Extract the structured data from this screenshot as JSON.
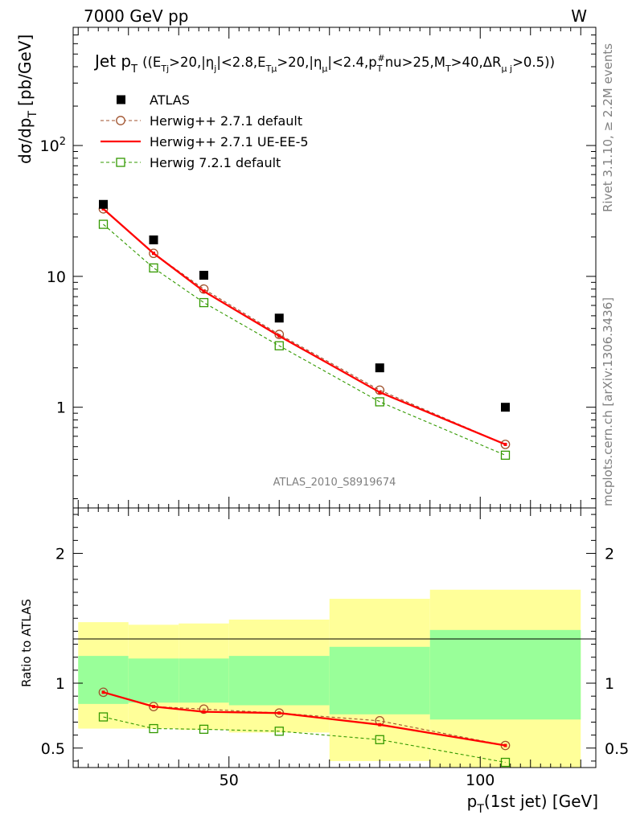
{
  "header": {
    "energy": "7000 GeV pp",
    "process": "W",
    "side_top": "Rivet 3.1.10, ≥ 2.2M events",
    "side_bottom": "mcplots.cern.ch [arXiv:1306.3436]"
  },
  "chart_data": [
    {
      "type": "scatter",
      "panel": "main",
      "title": "Jet p_T ((E_Tj>20,|η_j|<2.8,E_Tμ>20,|η_μ|<2.4,p_T^#nu>25,M_T>40,ΔR_μj>0.5))",
      "ylabel": "dσ/dp_T [pb/GeV]",
      "xlabel": "p_T(1st jet) [GeV]",
      "yscale": "log",
      "xlim": [
        19,
        123
      ],
      "ylim": [
        0.17,
        800
      ],
      "x_ticks": [
        50,
        100
      ],
      "y_ticks": [
        {
          "value": 1,
          "label": "1"
        },
        {
          "value": 10,
          "label": "10"
        },
        {
          "value": 100,
          "label": "10²"
        }
      ],
      "watermark": "ATLAS_2010_S8919674",
      "x": [
        25,
        35,
        45,
        60,
        80,
        105
      ],
      "series": [
        {
          "name": "ATLAS",
          "style": "data",
          "color": "#000000",
          "values": [
            35.5,
            19.0,
            10.2,
            4.8,
            2.0,
            1.0
          ]
        },
        {
          "name": "Herwig++ 2.7.1 default",
          "style": "circle-dashed",
          "color": "#a0522d",
          "values": [
            32.8,
            15.0,
            8.0,
            3.6,
            1.35,
            0.52
          ]
        },
        {
          "name": "Herwig++ 2.7.1 UE-EE-5",
          "style": "solid",
          "color": "#ff0000",
          "values": [
            32.8,
            15.0,
            7.7,
            3.5,
            1.3,
            0.52
          ]
        },
        {
          "name": "Herwig 7.2.1 default",
          "style": "square-dashed",
          "color": "#339900",
          "values": [
            25.0,
            11.6,
            6.3,
            2.95,
            1.1,
            0.43
          ]
        }
      ]
    },
    {
      "type": "line",
      "panel": "ratio",
      "ylabel": "Ratio to ATLAS",
      "xlabel": "p_T(1st jet) [GeV]",
      "xlim": [
        19,
        123
      ],
      "ylim": [
        0.35,
        2.35
      ],
      "x_ticks": [
        50,
        100
      ],
      "y_ticks": [
        {
          "value": 0.5,
          "label": "0.5"
        },
        {
          "value": 1,
          "label": "1"
        },
        {
          "value": 2,
          "label": "2"
        }
      ],
      "bands": {
        "bins": [
          [
            20,
            30
          ],
          [
            30,
            40
          ],
          [
            40,
            50
          ],
          [
            50,
            70
          ],
          [
            70,
            90
          ],
          [
            90,
            120
          ]
        ],
        "green": [
          [
            0.84,
            1.21
          ],
          [
            0.85,
            1.19
          ],
          [
            0.85,
            1.19
          ],
          [
            0.83,
            1.21
          ],
          [
            0.76,
            1.28
          ],
          [
            0.72,
            1.41
          ]
        ],
        "yellow": [
          [
            0.65,
            1.47
          ],
          [
            0.65,
            1.45
          ],
          [
            0.64,
            1.46
          ],
          [
            0.62,
            1.49
          ],
          [
            0.4,
            1.65
          ],
          [
            0.35,
            1.72
          ]
        ],
        "green_color": "#99ff99",
        "yellow_color": "#ffff99"
      },
      "x": [
        25,
        35,
        45,
        60,
        80,
        105
      ],
      "series": [
        {
          "name": "Herwig++ 2.7.1 default",
          "style": "circle-dashed",
          "color": "#a0522d",
          "values": [
            0.93,
            0.82,
            0.8,
            0.77,
            0.71,
            0.52
          ]
        },
        {
          "name": "Herwig++ 2.7.1 UE-EE-5",
          "style": "solid",
          "color": "#ff0000",
          "values": [
            0.93,
            0.82,
            0.78,
            0.77,
            0.68,
            0.52
          ]
        },
        {
          "name": "Herwig 7.2.1 default",
          "style": "square-dashed",
          "color": "#339900",
          "values": [
            0.74,
            0.65,
            0.645,
            0.63,
            0.565,
            0.39
          ]
        }
      ]
    }
  ]
}
